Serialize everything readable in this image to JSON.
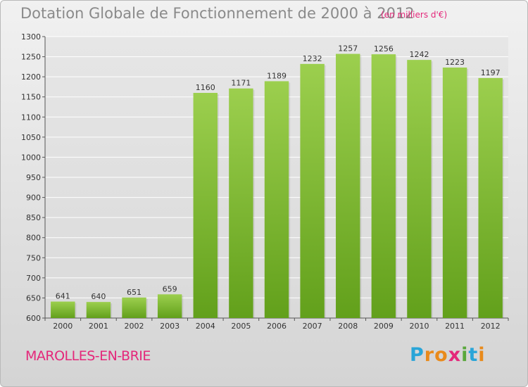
{
  "title": "Dotation Globale de Fonctionnement de 2000 à 2012",
  "subtitle": "(en milliers d'€)",
  "commune": "MAROLLES-EN-BRIE",
  "brand": {
    "letters": [
      "P",
      "r",
      "o",
      "x",
      "i",
      "t",
      "i"
    ],
    "colors": [
      "#29a5d8",
      "#e98a1b",
      "#e98a1b",
      "#e4277a",
      "#5aa83c",
      "#29a5d8",
      "#e98a1b"
    ]
  },
  "colors": {
    "bar_top": "#9ccf4e",
    "bar_bottom": "#62a01b",
    "title": "#8a8a8a",
    "accent": "#e4277a"
  },
  "chart_data": {
    "type": "bar",
    "categories": [
      "2000",
      "2001",
      "2002",
      "2003",
      "2004",
      "2005",
      "2006",
      "2007",
      "2008",
      "2009",
      "2010",
      "2011",
      "2012"
    ],
    "values": [
      641,
      640,
      651,
      659,
      1160,
      1171,
      1189,
      1232,
      1257,
      1256,
      1242,
      1223,
      1197
    ],
    "title": "Dotation Globale de Fonctionnement de 2000 à 2012",
    "subtitle": "(en milliers d'€)",
    "ylim": [
      600,
      1300
    ],
    "yticks": [
      600,
      650,
      700,
      750,
      800,
      850,
      900,
      950,
      1000,
      1050,
      1100,
      1150,
      1200,
      1250,
      1300
    ],
    "grid": true,
    "data_labels": true
  }
}
